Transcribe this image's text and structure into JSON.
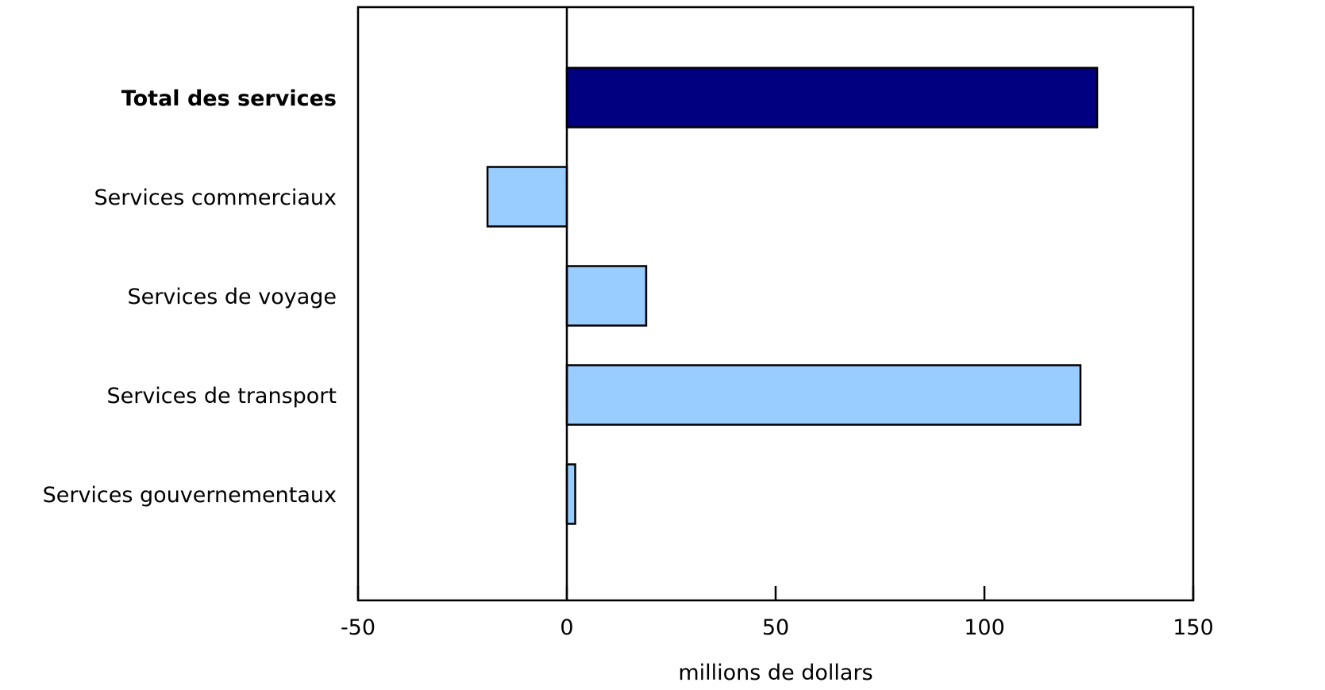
{
  "chart_data": {
    "type": "bar",
    "orientation": "horizontal",
    "title": "",
    "xlabel": "millions de dollars",
    "ylabel": "",
    "xlim": [
      -50,
      150
    ],
    "xticks": [
      -50,
      0,
      50,
      100,
      150
    ],
    "xtick_labels": [
      "-50",
      "0",
      "50",
      "100",
      "150"
    ],
    "grid": false,
    "categories": [
      "Total des services",
      "Services commerciaux",
      "Services de voyage",
      "Services de transport",
      "Services gouvernementaux"
    ],
    "values": [
      127,
      -19,
      19,
      123,
      2
    ],
    "bold_categories": [
      "Total des services"
    ],
    "colors": {
      "total": "#000080",
      "component": "#99ccff",
      "stroke": "#000000"
    }
  }
}
